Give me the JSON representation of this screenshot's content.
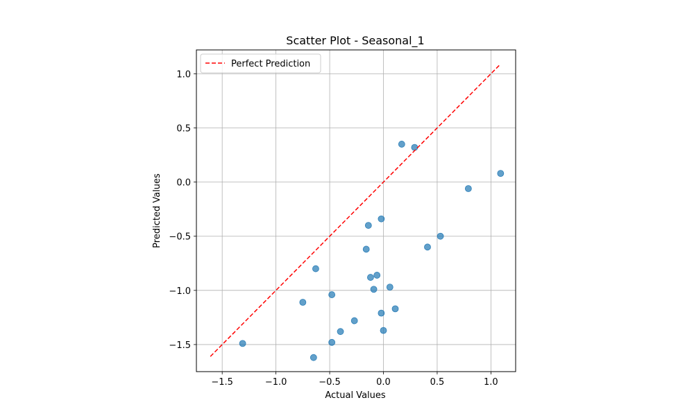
{
  "chart_data": {
    "type": "scatter",
    "title": "Scatter Plot - Seasonal_1",
    "xlabel": "Actual Values",
    "ylabel": "Predicted Values",
    "xlim": [
      -1.74,
      1.23
    ],
    "ylim": [
      -1.75,
      1.22
    ],
    "xticks": [
      -1.5,
      -1.0,
      -0.5,
      0.0,
      0.5,
      1.0
    ],
    "xtick_labels": [
      "−1.5",
      "−1.0",
      "−0.5",
      "0.0",
      "0.5",
      "1.0"
    ],
    "yticks": [
      -1.5,
      -1.0,
      -0.5,
      0.0,
      0.5,
      1.0
    ],
    "ytick_labels": [
      "−1.5",
      "−1.0",
      "−0.5",
      "0.0",
      "0.5",
      "1.0"
    ],
    "grid": true,
    "legend_position": "top-left",
    "series": [
      {
        "type": "scatter",
        "color": "#1f77b4",
        "points": [
          {
            "x": 0.17,
            "y": 0.35
          },
          {
            "x": 0.29,
            "y": 0.32
          },
          {
            "x": 1.09,
            "y": 0.08
          },
          {
            "x": 0.79,
            "y": -0.06
          },
          {
            "x": -0.02,
            "y": -0.34
          },
          {
            "x": -0.14,
            "y": -0.4
          },
          {
            "x": 0.53,
            "y": -0.5
          },
          {
            "x": -0.16,
            "y": -0.62
          },
          {
            "x": 0.41,
            "y": -0.6
          },
          {
            "x": -0.63,
            "y": -0.8
          },
          {
            "x": -0.06,
            "y": -0.86
          },
          {
            "x": -0.12,
            "y": -0.88
          },
          {
            "x": 0.06,
            "y": -0.97
          },
          {
            "x": -0.09,
            "y": -0.99
          },
          {
            "x": -0.48,
            "y": -1.04
          },
          {
            "x": -0.75,
            "y": -1.11
          },
          {
            "x": 0.11,
            "y": -1.17
          },
          {
            "x": -0.02,
            "y": -1.21
          },
          {
            "x": -0.27,
            "y": -1.28
          },
          {
            "x": 0.0,
            "y": -1.37
          },
          {
            "x": -0.4,
            "y": -1.38
          },
          {
            "x": -1.31,
            "y": -1.49
          },
          {
            "x": -0.48,
            "y": -1.48
          },
          {
            "x": -0.65,
            "y": -1.62
          }
        ]
      },
      {
        "name": "Perfect Prediction",
        "type": "line",
        "style": "dashed",
        "color": "#ff0000",
        "points": [
          {
            "x": -1.61,
            "y": -1.61
          },
          {
            "x": 1.09,
            "y": 1.09
          }
        ]
      }
    ]
  }
}
